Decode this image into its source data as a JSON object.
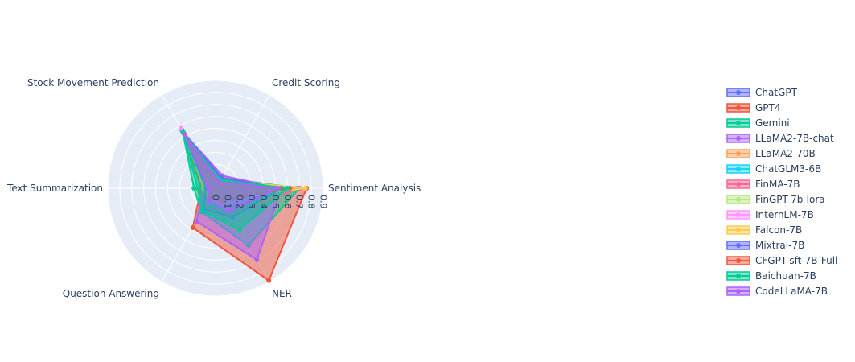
{
  "chart_data": {
    "type": "radar",
    "axes": [
      "Sentiment Analysis",
      "NER",
      "Question Answering",
      "Text Summarization",
      "Stock Movement Prediction",
      "Credit Scoring"
    ],
    "radial_ticks": [
      "0",
      "0.1",
      "0.2",
      "0.3",
      "0.4",
      "0.5",
      "0.6",
      "0.7",
      "0.8",
      "0.9"
    ],
    "radial_range": [
      0,
      0.9
    ],
    "grid": true,
    "legend_position": "right",
    "series": [
      {
        "name": "ChatGPT",
        "color": "#636efa",
        "values": [
          0.35,
          0.16,
          0.15,
          0.09,
          0.56,
          0.1
        ]
      },
      {
        "name": "GPT4",
        "color": "#EF553B",
        "values": [
          0.76,
          0.89,
          0.38,
          0.12,
          0.55,
          0.05
        ]
      },
      {
        "name": "Gemini",
        "color": "#00cc96",
        "values": [
          0.7,
          0.55,
          0.23,
          0.18,
          0.55,
          0.1
        ]
      },
      {
        "name": "LLaMA2-7B-chat",
        "color": "#ab63fa",
        "values": [
          0.55,
          0.69,
          0.32,
          0.1,
          0.53,
          0.12
        ]
      },
      {
        "name": "LLaMA2-70B",
        "color": "#FFA15A",
        "values": [
          0.65,
          0.08,
          0.08,
          0.05,
          0.5,
          0.08
        ]
      },
      {
        "name": "ChatGLM3-6B",
        "color": "#19d3f3",
        "values": [
          0.68,
          0.2,
          0.15,
          0.1,
          0.52,
          0.08
        ]
      },
      {
        "name": "FinMA-7B",
        "color": "#FF6692",
        "values": [
          0.7,
          0.25,
          0.18,
          0.1,
          0.5,
          0.05
        ]
      },
      {
        "name": "FinGPT-7b-lora",
        "color": "#B6E880",
        "values": [
          0.6,
          0.15,
          0.12,
          0.08,
          0.52,
          0.08
        ]
      },
      {
        "name": "InternLM-7B",
        "color": "#FF97FF",
        "values": [
          0.58,
          0.18,
          0.1,
          0.08,
          0.58,
          0.05
        ]
      },
      {
        "name": "Falcon-7B",
        "color": "#FECB52",
        "values": [
          0.75,
          0.1,
          0.1,
          0.1,
          0.5,
          0.08
        ]
      },
      {
        "name": "Mixtral-7B",
        "color": "#636efa",
        "values": [
          0.55,
          0.28,
          0.2,
          0.08,
          0.54,
          0.1
        ]
      },
      {
        "name": "CFGPT-sft-7B-Full",
        "color": "#EF553B",
        "values": [
          0.62,
          0.12,
          0.1,
          0.06,
          0.52,
          0.06
        ]
      },
      {
        "name": "Baichuan-7B",
        "color": "#00cc96",
        "values": [
          0.6,
          0.4,
          0.22,
          0.15,
          0.54,
          0.08
        ]
      },
      {
        "name": "CodeLLaMA-7B",
        "color": "#ab63fa",
        "values": [
          0.52,
          0.22,
          0.12,
          0.06,
          0.52,
          0.06
        ]
      }
    ]
  }
}
